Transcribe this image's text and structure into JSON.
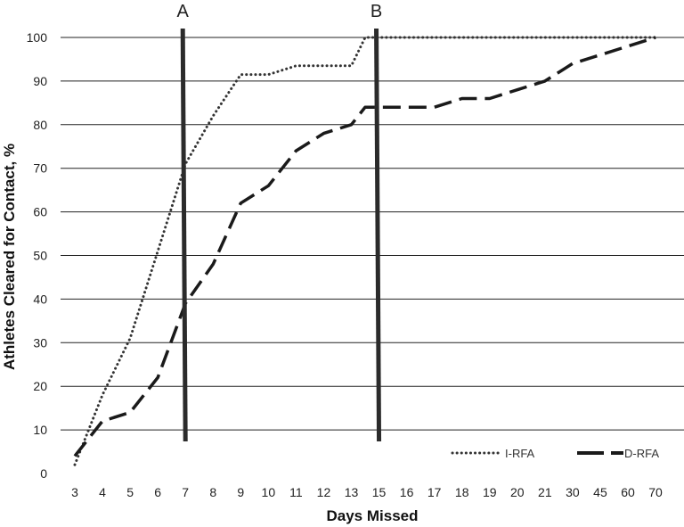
{
  "chart_data": {
    "type": "line",
    "title": "",
    "xlabel": "Days Missed",
    "ylabel": "Athletes Cleared for Contact, %",
    "ylim": [
      0,
      100
    ],
    "yticks": [
      0,
      10,
      20,
      30,
      40,
      50,
      60,
      70,
      80,
      90,
      100
    ],
    "grid": "horizontal",
    "legend_position": "bottom-right",
    "categories": [
      "3",
      "4",
      "5",
      "6",
      "7",
      "8",
      "9",
      "10",
      "11",
      "12",
      "13",
      "15",
      "16",
      "17",
      "18",
      "19",
      "20",
      "21",
      "30",
      "45",
      "60",
      "70"
    ],
    "series": [
      {
        "name": "I-RFA",
        "style": "dotted",
        "color": "#333333",
        "points": [
          [
            3,
            2
          ],
          [
            4,
            18
          ],
          [
            5,
            31
          ],
          [
            6,
            51
          ],
          [
            7,
            71
          ],
          [
            8,
            82
          ],
          [
            9,
            91.5
          ],
          [
            10,
            91.5
          ],
          [
            11,
            93.5
          ],
          [
            12,
            93.5
          ],
          [
            13,
            93.5
          ],
          [
            14,
            100
          ],
          [
            15,
            100
          ],
          [
            70,
            100
          ]
        ]
      },
      {
        "name": "D-RFA",
        "style": "dashed",
        "color": "#1a1a1a",
        "points": [
          [
            3,
            4
          ],
          [
            4,
            12
          ],
          [
            5,
            14
          ],
          [
            6,
            22
          ],
          [
            7,
            39
          ],
          [
            8,
            48
          ],
          [
            9,
            62
          ],
          [
            10,
            66
          ],
          [
            11,
            74
          ],
          [
            12,
            78
          ],
          [
            13,
            80
          ],
          [
            14,
            84
          ],
          [
            15,
            84
          ],
          [
            17,
            84
          ],
          [
            18,
            86
          ],
          [
            19,
            86
          ],
          [
            20,
            88
          ],
          [
            21,
            90
          ],
          [
            30,
            94
          ],
          [
            45,
            96
          ],
          [
            60,
            98
          ],
          [
            70,
            100
          ]
        ]
      }
    ],
    "markers": [
      {
        "label": "A",
        "x": 7
      },
      {
        "label": "B",
        "x": 15
      }
    ]
  }
}
